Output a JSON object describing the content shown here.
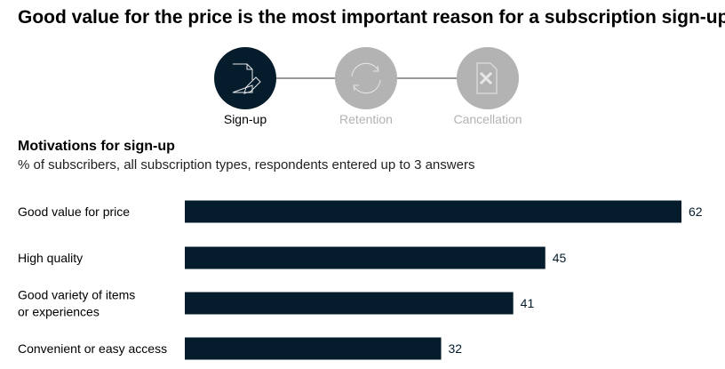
{
  "title": "Good value for the price is the most important reason for a subscription sign-up.",
  "stages": [
    {
      "label": "Sign-up",
      "icon": "document-pencil-icon",
      "active": true
    },
    {
      "label": "Retention",
      "icon": "refresh-icon",
      "active": false
    },
    {
      "label": "Cancellation",
      "icon": "document-x-icon",
      "active": false
    }
  ],
  "colors": {
    "bar": "#051c2c",
    "active": "#051c2c",
    "inactive": "#b3b3b3",
    "inactive_text": "#b3b3b3"
  },
  "chart_data": {
    "type": "bar",
    "orientation": "horizontal",
    "title": "Motivations for sign-up",
    "subtitle": "% of subscribers, all subscription types, respondents entered up to 3 answers",
    "categories": [
      [
        "Good value for price"
      ],
      [
        "High quality"
      ],
      [
        "Good variety of items",
        "or experiences"
      ],
      [
        "Convenient or easy access"
      ]
    ],
    "values": [
      62,
      45,
      41,
      32
    ],
    "xlim": [
      0,
      62
    ],
    "grid": false
  }
}
